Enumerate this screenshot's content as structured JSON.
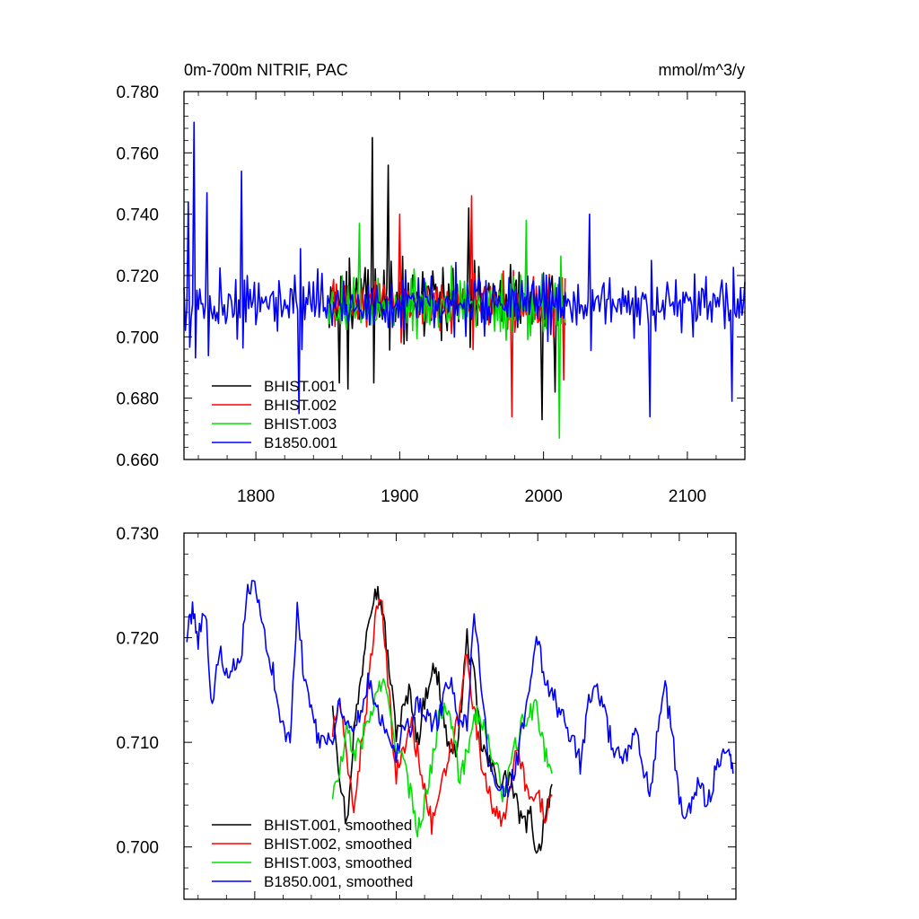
{
  "chart_data": [
    {
      "type": "line",
      "title": "0m-700m NITRIF, PAC",
      "units": "mmol/m^3/y",
      "xlim": [
        1750,
        2140
      ],
      "ylim": [
        0.66,
        0.78
      ],
      "xticks": [
        1800,
        1900,
        2000,
        2100
      ],
      "xtick_labels": [
        "1800",
        "1900",
        "2000",
        "2100"
      ],
      "yticks": [
        0.66,
        0.68,
        0.7,
        0.72,
        0.74,
        0.76,
        0.78
      ],
      "ytick_labels": [
        "0.660",
        "0.680",
        "0.700",
        "0.720",
        "0.740",
        "0.760",
        "0.780"
      ],
      "grid": false,
      "legend_position": "bottom-left",
      "series": [
        {
          "name": "BHIST.001",
          "color": "#000000",
          "x_start": 1850,
          "x_end": 2015,
          "mean": 0.712,
          "spread": 0.012,
          "peaks": [
            [
              1858,
              0.685
            ],
            [
              1864,
              0.683
            ],
            [
              1881,
              0.765
            ],
            [
              1892,
              0.756
            ],
            [
              1948,
              0.742
            ],
            [
              1999,
              0.673
            ],
            [
              2008,
              0.682
            ]
          ]
        },
        {
          "name": "BHIST.002",
          "color": "#ff0000",
          "x_start": 1850,
          "x_end": 2015,
          "mean": 0.711,
          "spread": 0.011,
          "peaks": [
            [
              1900,
              0.74
            ],
            [
              1950,
              0.746
            ],
            [
              1978,
              0.674
            ],
            [
              2014,
              0.686
            ]
          ]
        },
        {
          "name": "BHIST.003",
          "color": "#00e000",
          "x_start": 1850,
          "x_end": 2015,
          "mean": 0.71,
          "spread": 0.011,
          "peaks": [
            [
              1872,
              0.737
            ],
            [
              1988,
              0.738
            ],
            [
              2011,
              0.667
            ]
          ]
        },
        {
          "name": "B1850.001",
          "color": "#0000ff",
          "x_start": 1750,
          "x_end": 2140,
          "mean": 0.711,
          "spread": 0.011,
          "peaks": [
            [
              1753,
              0.744
            ],
            [
              1757,
              0.77
            ],
            [
              1766,
              0.747
            ],
            [
              1790,
              0.754
            ],
            [
              1830,
              0.675
            ],
            [
              2032,
              0.74
            ],
            [
              2074,
              0.674
            ],
            [
              2131,
              0.679
            ]
          ]
        }
      ],
      "legend": [
        "BHIST.001",
        "BHIST.002",
        "BHIST.003",
        "B1850.001"
      ]
    },
    {
      "type": "line",
      "xlim": [
        1750,
        2140
      ],
      "ylim": [
        0.695,
        0.73
      ],
      "yticks": [
        0.7,
        0.71,
        0.72,
        0.73
      ],
      "ytick_labels": [
        "0.700",
        "0.710",
        "0.720",
        "0.730"
      ],
      "grid": false,
      "legend_position": "bottom-left",
      "series": [
        {
          "name": "BHIST.001, smoothed",
          "color": "#000000",
          "x": [
            1855,
            1860,
            1865,
            1870,
            1875,
            1880,
            1885,
            1890,
            1895,
            1900,
            1905,
            1910,
            1915,
            1920,
            1925,
            1930,
            1935,
            1940,
            1945,
            1950,
            1955,
            1960,
            1965,
            1970,
            1975,
            1980,
            1985,
            1990,
            1995,
            2000,
            2005,
            2010
          ],
          "y": [
            0.714,
            0.707,
            0.702,
            0.711,
            0.716,
            0.722,
            0.725,
            0.723,
            0.717,
            0.711,
            0.713,
            0.715,
            0.71,
            0.714,
            0.717,
            0.716,
            0.711,
            0.708,
            0.712,
            0.72,
            0.716,
            0.71,
            0.708,
            0.707,
            0.706,
            0.707,
            0.704,
            0.702,
            0.703,
            0.699,
            0.703,
            0.706
          ]
        },
        {
          "name": "BHIST.002, smoothed",
          "color": "#ff0000",
          "x": [
            1855,
            1860,
            1865,
            1870,
            1875,
            1880,
            1885,
            1890,
            1895,
            1900,
            1905,
            1910,
            1915,
            1920,
            1925,
            1930,
            1935,
            1940,
            1945,
            1950,
            1955,
            1960,
            1965,
            1970,
            1975,
            1980,
            1985,
            1990,
            1995,
            2000,
            2005,
            2010
          ],
          "y": [
            0.711,
            0.714,
            0.708,
            0.704,
            0.709,
            0.715,
            0.722,
            0.723,
            0.714,
            0.707,
            0.709,
            0.712,
            0.709,
            0.706,
            0.702,
            0.705,
            0.707,
            0.71,
            0.713,
            0.719,
            0.713,
            0.708,
            0.706,
            0.703,
            0.702,
            0.706,
            0.709,
            0.707,
            0.704,
            0.705,
            0.703,
            0.705
          ]
        },
        {
          "name": "BHIST.003, smoothed",
          "color": "#00e000",
          "x": [
            1855,
            1860,
            1865,
            1870,
            1875,
            1880,
            1885,
            1890,
            1895,
            1900,
            1905,
            1910,
            1915,
            1920,
            1925,
            1930,
            1935,
            1940,
            1945,
            1950,
            1955,
            1960,
            1965,
            1970,
            1975,
            1980,
            1985,
            1990,
            1995,
            2000,
            2005,
            2010
          ],
          "y": [
            0.705,
            0.707,
            0.711,
            0.709,
            0.71,
            0.712,
            0.714,
            0.716,
            0.713,
            0.71,
            0.708,
            0.705,
            0.702,
            0.704,
            0.708,
            0.712,
            0.714,
            0.712,
            0.706,
            0.709,
            0.713,
            0.712,
            0.71,
            0.708,
            0.705,
            0.707,
            0.71,
            0.712,
            0.713,
            0.713,
            0.709,
            0.707
          ]
        },
        {
          "name": "B1850.001, smoothed",
          "color": "#0000ff",
          "x": [
            1752,
            1756,
            1760,
            1765,
            1770,
            1775,
            1780,
            1785,
            1790,
            1795,
            1800,
            1805,
            1810,
            1815,
            1820,
            1825,
            1830,
            1835,
            1840,
            1845,
            1850,
            1855,
            1860,
            1865,
            1870,
            1875,
            1880,
            1885,
            1890,
            1895,
            1900,
            1905,
            1910,
            1915,
            1920,
            1925,
            1930,
            1935,
            1940,
            1945,
            1950,
            1955,
            1960,
            1965,
            1970,
            1975,
            1980,
            1985,
            1990,
            1995,
            2000,
            2005,
            2010,
            2015,
            2020,
            2025,
            2030,
            2035,
            2040,
            2045,
            2050,
            2055,
            2060,
            2065,
            2070,
            2075,
            2080,
            2085,
            2090,
            2095,
            2100,
            2105,
            2110,
            2115,
            2120,
            2125,
            2130,
            2135,
            2138
          ],
          "y": [
            0.72,
            0.723,
            0.72,
            0.723,
            0.713,
            0.719,
            0.716,
            0.717,
            0.718,
            0.724,
            0.725,
            0.721,
            0.719,
            0.715,
            0.711,
            0.71,
            0.723,
            0.716,
            0.714,
            0.71,
            0.711,
            0.71,
            0.714,
            0.712,
            0.711,
            0.713,
            0.716,
            0.714,
            0.712,
            0.711,
            0.709,
            0.712,
            0.711,
            0.714,
            0.713,
            0.712,
            0.712,
            0.716,
            0.715,
            0.711,
            0.712,
            0.722,
            0.716,
            0.709,
            0.707,
            0.705,
            0.706,
            0.708,
            0.712,
            0.716,
            0.72,
            0.716,
            0.715,
            0.713,
            0.712,
            0.71,
            0.708,
            0.713,
            0.716,
            0.714,
            0.711,
            0.709,
            0.708,
            0.709,
            0.711,
            0.707,
            0.705,
            0.712,
            0.715,
            0.711,
            0.704,
            0.703,
            0.705,
            0.706,
            0.704,
            0.707,
            0.708,
            0.71,
            0.707
          ]
        }
      ],
      "legend": [
        "BHIST.001, smoothed",
        "BHIST.002, smoothed",
        "BHIST.003, smoothed",
        "B1850.001, smoothed"
      ]
    }
  ]
}
